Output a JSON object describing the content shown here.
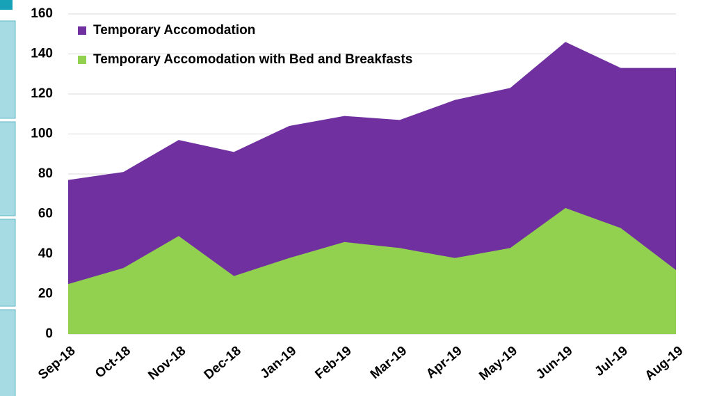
{
  "chart_data": {
    "type": "area",
    "categories": [
      "Sep-18",
      "Oct-18",
      "Nov-18",
      "Dec-18",
      "Jan-19",
      "Feb-19",
      "Mar-19",
      "Apr-19",
      "May-19",
      "Jun-19",
      "Jul-19",
      "Aug-19"
    ],
    "series": [
      {
        "name": "Temporary Accomodation",
        "color": "#7030a0",
        "values": [
          77,
          81,
          97,
          91,
          104,
          109,
          107,
          117,
          123,
          146,
          133,
          133
        ]
      },
      {
        "name": "Temporary Accomodation with Bed and Breakfasts",
        "color": "#92d050",
        "values": [
          25,
          33,
          49,
          29,
          38,
          46,
          43,
          38,
          43,
          63,
          53,
          32
        ]
      }
    ],
    "ylim": [
      0,
      160
    ],
    "yticks": [
      0,
      20,
      40,
      60,
      80,
      100,
      120,
      140,
      160
    ],
    "grid": true,
    "legend": "top-left"
  }
}
